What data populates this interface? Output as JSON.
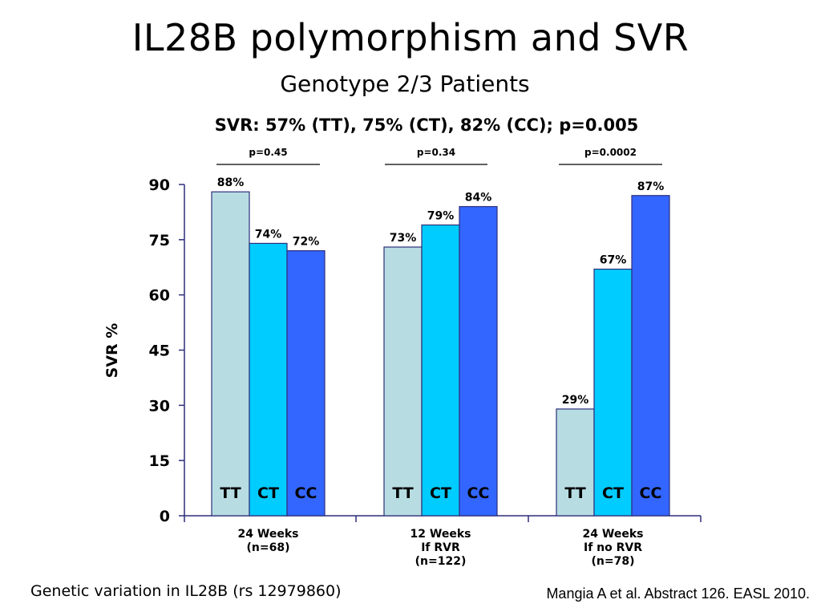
{
  "slide": {
    "title": "IL28B polymorphism and SVR",
    "subtitle": "Genotype 2/3 Patients",
    "headline": "SVR: 57% (TT), 75% (CT), 82% (CC); p=0.005",
    "footer_left": "Genetic variation in IL28B (rs 12979860)",
    "footer_right": "Mangia A et al. Abstract 126. EASL 2010."
  },
  "chart_data": {
    "type": "bar",
    "ylabel": "SVR %",
    "ylim": [
      0,
      90
    ],
    "yticks": [
      0,
      15,
      30,
      45,
      60,
      75,
      90
    ],
    "categories": [
      {
        "lines": [
          "24 Weeks",
          "(n=68)"
        ],
        "p_value": "p=0.45"
      },
      {
        "lines": [
          "12 Weeks",
          "If RVR",
          "(n=122)"
        ],
        "p_value": "p=0.34"
      },
      {
        "lines": [
          "24 Weeks",
          "If no RVR",
          "(n=78)"
        ],
        "p_value": "p=0.0002"
      }
    ],
    "series": [
      {
        "name": "TT",
        "color": "#b7dde3",
        "values": [
          88,
          73,
          29
        ],
        "labels": [
          "88%",
          "73%",
          "29%"
        ]
      },
      {
        "name": "CT",
        "color": "#00ccff",
        "values": [
          74,
          79,
          67
        ],
        "labels": [
          "74%",
          "79%",
          "67%"
        ]
      },
      {
        "name": "CC",
        "color": "#3366ff",
        "values": [
          72,
          84,
          87
        ],
        "labels": [
          "72%",
          "84%",
          "87%"
        ]
      }
    ]
  }
}
